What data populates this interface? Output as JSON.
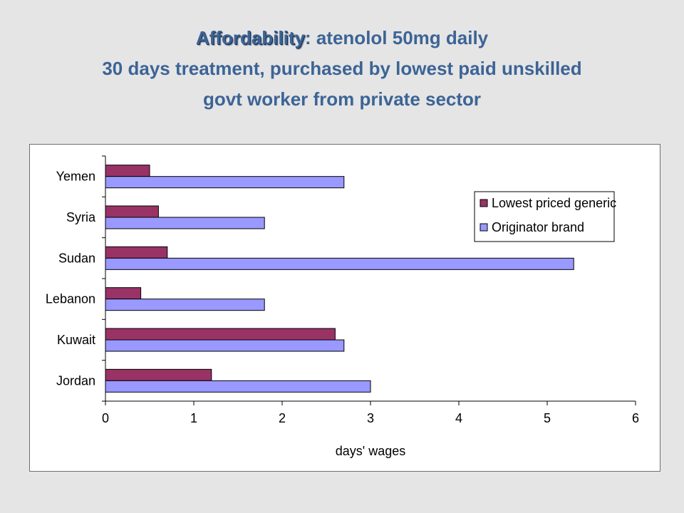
{
  "title": {
    "line1_bold": "Affordability",
    "line1_rest": ": atenolol 50mg daily",
    "line2": "30 days treatment, purchased by lowest paid unskilled",
    "line3": "govt worker from private sector"
  },
  "chart_data": {
    "type": "bar",
    "orientation": "horizontal",
    "categories": [
      "Jordan",
      "Kuwait",
      "Lebanon",
      "Sudan",
      "Syria",
      "Yemen"
    ],
    "series": [
      {
        "name": "Lowest priced generic",
        "values": [
          1.2,
          2.6,
          0.4,
          0.7,
          0.6,
          0.5
        ],
        "color": "#993366"
      },
      {
        "name": "Originator brand",
        "values": [
          3.0,
          2.7,
          1.8,
          5.3,
          1.8,
          2.7
        ],
        "color": "#9999ff"
      }
    ],
    "xlabel": "days' wages",
    "ylabel": "",
    "xlim": [
      0,
      6
    ],
    "xticks": [
      "0",
      "1",
      "2",
      "3",
      "4",
      "5",
      "6"
    ],
    "grid": false,
    "legend": "right"
  }
}
